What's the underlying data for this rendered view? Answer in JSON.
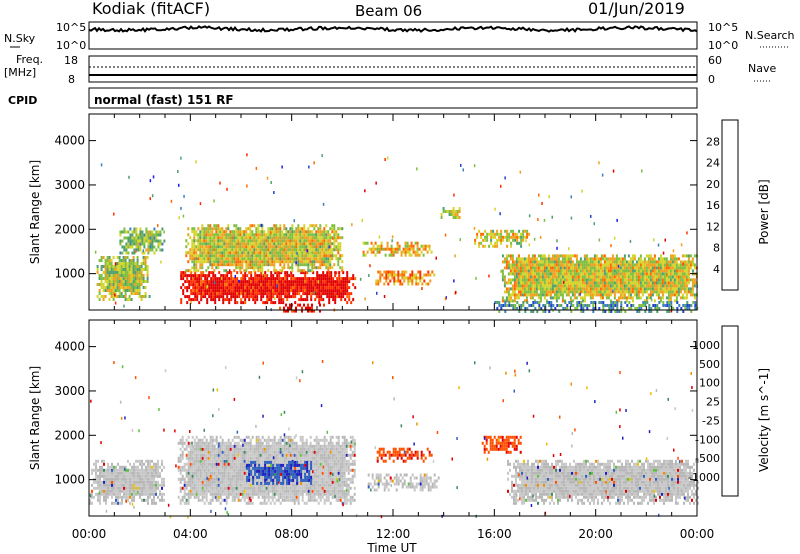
{
  "header": {
    "station": "Kodiak (fitACF)",
    "beam": "Beam 06",
    "date": "01/Jun/2019"
  },
  "panels": {
    "sky": {
      "left_label": "N.Sky",
      "right_label": "N.Search",
      "left_ticks": [
        "10^5",
        "10^0"
      ],
      "right_ticks": [
        "10^5",
        "10^0"
      ]
    },
    "freq": {
      "left_label_top": "Freq.",
      "left_label_bottom": "[MHz]",
      "right_label": "Nave",
      "left_ticks": [
        "18",
        "8"
      ],
      "right_ticks": [
        "60",
        "0"
      ]
    },
    "cpid": {
      "label": "CPID",
      "mode": "normal (fast) 151 RF"
    }
  },
  "chart_data": [
    {
      "type": "heatmap",
      "name": "power",
      "ylabel": "Slant Range [km]",
      "xlabel": "",
      "x_range_hours": [
        0,
        24
      ],
      "ylim": [
        180,
        4600
      ],
      "yticks": [
        1000,
        2000,
        3000,
        4000
      ],
      "xticks": [
        "00:00",
        "04:00",
        "08:00",
        "12:00",
        "16:00",
        "20:00",
        "00:00"
      ],
      "colorbar": {
        "label": "Power [dB]",
        "ticks": [
          "4",
          "8",
          "12",
          "16",
          "20",
          "24",
          "28"
        ],
        "colors": [
          "#1a1aff",
          "#2244cc",
          "#3f7fbf",
          "#4f9f6f",
          "#7fbf3f",
          "#d4d42a",
          "#f0a020",
          "#ff6a00",
          "#ff3000",
          "#e00000"
        ]
      },
      "regions": [
        {
          "t0": 0.3,
          "t1": 2.4,
          "r0": 450,
          "r1": 1450,
          "level": 0.5
        },
        {
          "t0": 1.2,
          "t1": 3.0,
          "r0": 1500,
          "r1": 2100,
          "level": 0.45
        },
        {
          "t0": 3.6,
          "t1": 10.5,
          "r0": 380,
          "r1": 1100,
          "level": 0.95
        },
        {
          "t0": 3.8,
          "t1": 10.0,
          "r0": 1100,
          "r1": 2150,
          "level": 0.55
        },
        {
          "t0": 7.5,
          "t1": 9.3,
          "r0": 190,
          "r1": 380,
          "level": 0.95
        },
        {
          "t0": 10.8,
          "t1": 13.5,
          "r0": 1450,
          "r1": 1750,
          "level": 0.6
        },
        {
          "t0": 11.3,
          "t1": 13.6,
          "r0": 800,
          "r1": 1100,
          "level": 0.7
        },
        {
          "t0": 13.8,
          "t1": 14.6,
          "r0": 2300,
          "r1": 2550,
          "level": 0.55
        },
        {
          "t0": 15.2,
          "t1": 17.4,
          "r0": 1650,
          "r1": 2050,
          "level": 0.55
        },
        {
          "t0": 16.3,
          "t1": 24.0,
          "r0": 420,
          "r1": 1500,
          "level": 0.55
        },
        {
          "t0": 16.0,
          "t1": 24.0,
          "r0": 180,
          "r1": 420,
          "level": 0.3
        }
      ]
    },
    {
      "type": "heatmap",
      "name": "velocity",
      "ylabel": "Slant Range [km]",
      "xlabel": "Time UT",
      "x_range_hours": [
        0,
        24
      ],
      "ylim": [
        180,
        4600
      ],
      "yticks": [
        1000,
        2000,
        3000,
        4000
      ],
      "xticks": [
        "00:00",
        "04:00",
        "08:00",
        "12:00",
        "16:00",
        "20:00",
        "00:00"
      ],
      "colorbar": {
        "label": "Velocity [m s^-1]",
        "ticks": [
          "1000",
          "500",
          "100",
          "25",
          "-25",
          "-100",
          "-500",
          "-1000"
        ],
        "colors": [
          "#2020c0",
          "#3060c0",
          "#3a8a5a",
          "#60c040",
          "#b8b8b8",
          "#c8c8c8",
          "#f0c000",
          "#f09000",
          "#ff5000",
          "#e00000"
        ]
      },
      "regions": [
        {
          "t0": 0.0,
          "t1": 3.0,
          "r0": 500,
          "r1": 1450,
          "vel": 0
        },
        {
          "t0": 3.5,
          "t1": 10.5,
          "r0": 500,
          "r1": 2000,
          "vel": 0
        },
        {
          "t0": 6.2,
          "t1": 8.8,
          "r0": 950,
          "r1": 1450,
          "vel": 0.75
        },
        {
          "t0": 11.2,
          "t1": 13.5,
          "r0": 1450,
          "r1": 1750,
          "vel": -0.75
        },
        {
          "t0": 11.0,
          "t1": 13.8,
          "r0": 800,
          "r1": 1150,
          "vel": 0
        },
        {
          "t0": 15.5,
          "t1": 17.0,
          "r0": 1650,
          "r1": 2050,
          "vel": -0.75
        },
        {
          "t0": 16.5,
          "t1": 24.0,
          "r0": 500,
          "r1": 1500,
          "vel": 0
        }
      ]
    }
  ],
  "colors": {
    "axis": "#000000",
    "background": "#ffffff"
  }
}
